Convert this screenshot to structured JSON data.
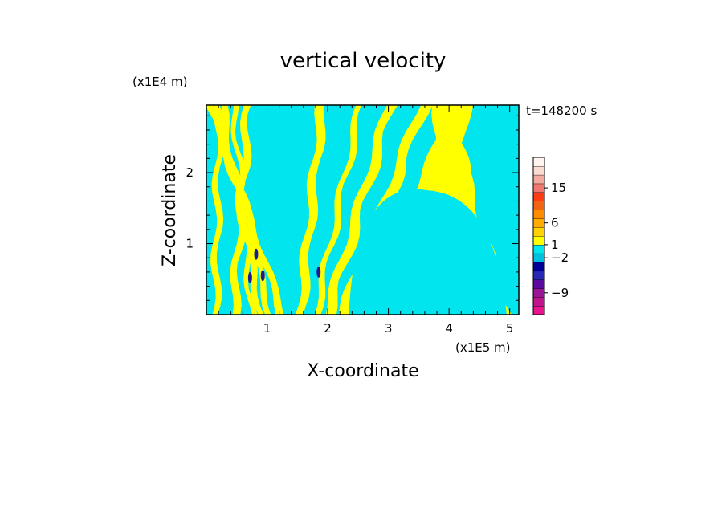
{
  "chart_data": {
    "type": "heatmap",
    "title": "vertical velocity",
    "xlabel": "X-coordinate",
    "ylabel": "Z-coordinate",
    "x_scale_label": "(x1E5 m)",
    "y_scale_label": "(x1E4 m)",
    "time_label": "t=148200 s",
    "xlim": [
      0,
      5.15
    ],
    "ylim": [
      0,
      2.95
    ],
    "x_ticks": [
      1,
      2,
      3,
      4,
      5
    ],
    "y_ticks": [
      1,
      2
    ],
    "field_colors": {
      "positive_small": "#ffff00",
      "negative_small": "#00e5ee",
      "strong_negative": "#1a1a9a"
    },
    "colorbar": {
      "levels": [
        {
          "color": "#e8148c"
        },
        {
          "color": "#c0148c"
        },
        {
          "color": "#9a1496"
        },
        {
          "color": "#5a0aa0"
        },
        {
          "color": "#2828b4"
        },
        {
          "color": "#000096"
        },
        {
          "color": "#00c0e0"
        },
        {
          "color": "#00e5ee"
        },
        {
          "color": "#ffff00"
        },
        {
          "color": "#ffd200"
        },
        {
          "color": "#ffaa00"
        },
        {
          "color": "#ff8c00"
        },
        {
          "color": "#f06414"
        },
        {
          "color": "#ff3c14"
        },
        {
          "color": "#f07870"
        },
        {
          "color": "#f5aaa0"
        },
        {
          "color": "#fadcd2"
        },
        {
          "color": "#fff5f0"
        }
      ],
      "labels": [
        {
          "text": "15",
          "value": 15
        },
        {
          "text": "6",
          "value": 6
        },
        {
          "text": "1",
          "value": 1
        },
        {
          "text": "−2",
          "value": -2
        },
        {
          "text": "−9",
          "value": -9
        }
      ]
    },
    "bands": [
      {
        "x": 0.15,
        "w": 0.1,
        "tilt": 0.02
      },
      {
        "x": 0.45,
        "w": 0.12,
        "tilt": 0.08
      },
      {
        "x": 0.75,
        "w": 0.08,
        "tilt": -0.1
      },
      {
        "x": 0.9,
        "w": 0.1,
        "tilt": -0.22
      },
      {
        "x": 1.05,
        "w": 0.09,
        "tilt": -0.3
      },
      {
        "x": 1.25,
        "w": 0.12,
        "tilt": -0.4
      },
      {
        "x": 1.55,
        "w": 0.14,
        "tilt": 0.12
      },
      {
        "x": 1.8,
        "w": 0.1,
        "tilt": 0.25
      },
      {
        "x": 2.0,
        "w": 0.16,
        "tilt": 0.35
      },
      {
        "x": 2.25,
        "w": 0.18,
        "tilt": 0.45
      },
      {
        "x": 2.6,
        "w": 0.3,
        "tilt": 0.55
      },
      {
        "x": 3.1,
        "w": 0.25,
        "tilt": 0.4
      },
      {
        "x": 3.6,
        "w": 0.22,
        "tilt": 0.1
      },
      {
        "x": 4.05,
        "w": 0.3,
        "tilt": -0.05
      },
      {
        "x": 4.55,
        "w": 0.3,
        "tilt": -0.2
      },
      {
        "x": 4.9,
        "w": 0.2,
        "tilt": -0.35
      }
    ],
    "cyan_dome": {
      "x0": 2.35,
      "x1": 4.95,
      "top": 1.75
    },
    "hot_spots": [
      {
        "x": 0.72,
        "z": 0.52
      },
      {
        "x": 0.82,
        "z": 0.85
      },
      {
        "x": 0.93,
        "z": 0.55
      },
      {
        "x": 1.85,
        "z": 0.6
      }
    ]
  }
}
